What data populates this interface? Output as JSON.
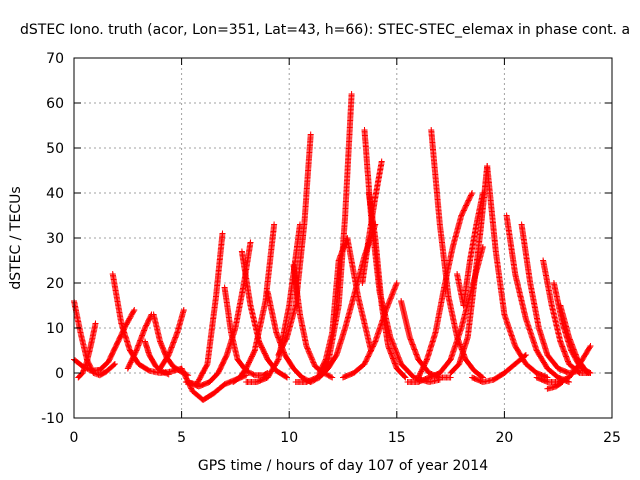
{
  "chart_data": {
    "type": "scatter",
    "title": "dSTEC Iono. truth (acor, Lon=351, Lat=43, h=66): STEC-STEC_elemax in phase cont. a",
    "xlabel": "GPS time / hours of day 107 of year 2014",
    "ylabel": "dSTEC  / TECUs",
    "xlim": [
      0,
      25
    ],
    "ylim": [
      -10,
      70
    ],
    "xticks": [
      0,
      5,
      10,
      15,
      20,
      25
    ],
    "yticks": [
      -10,
      0,
      10,
      20,
      30,
      40,
      50,
      60,
      70
    ],
    "xtick_labels": [
      "0",
      "5",
      "10",
      "15",
      "20",
      "25"
    ],
    "ytick_labels": [
      "-10",
      "0",
      "10",
      "20",
      "30",
      "40",
      "50",
      "60",
      "70"
    ],
    "grid": true,
    "marker": "plus",
    "color": "#ff0000",
    "legend": "none",
    "arcs": [
      {
        "x": [
          0.0,
          0.3,
          0.6,
          0.9,
          1.2,
          1.5,
          1.9
        ],
        "y": [
          16,
          9,
          3,
          0,
          -0.5,
          0.3,
          2
        ]
      },
      {
        "x": [
          0.0,
          0.4,
          0.8,
          1.2,
          1.6,
          2.0,
          2.4,
          2.8
        ],
        "y": [
          3,
          1.5,
          0.5,
          0.7,
          2.5,
          6.5,
          10.5,
          14
        ]
      },
      {
        "x": [
          0.2,
          0.4,
          0.6,
          0.8,
          1.0
        ],
        "y": [
          -1,
          0,
          2.5,
          6.5,
          11
        ]
      },
      {
        "x": [
          1.8,
          2.2,
          2.6,
          3.0,
          3.5,
          4.0,
          4.5,
          5.0
        ],
        "y": [
          22,
          11,
          5,
          2,
          0.5,
          0,
          0.3,
          1
        ]
      },
      {
        "x": [
          2.5,
          2.9,
          3.3,
          3.6
        ],
        "y": [
          1,
          5,
          10,
          13
        ]
      },
      {
        "x": [
          3.7,
          4.0,
          4.3,
          4.6,
          4.9,
          5.3
        ],
        "y": [
          13,
          7,
          3.5,
          1.5,
          0.5,
          -0.5
        ]
      },
      {
        "x": [
          3.3,
          3.5,
          3.8,
          4.1,
          4.4
        ],
        "y": [
          7,
          4,
          1.5,
          0.3,
          -0.3
        ]
      },
      {
        "x": [
          4.0,
          4.4,
          4.8,
          5.1
        ],
        "y": [
          1,
          4,
          9,
          14
        ]
      },
      {
        "x": [
          5.0,
          5.5,
          6.0,
          6.5,
          7.0,
          7.5,
          8.0
        ],
        "y": [
          1,
          -4,
          -6,
          -4.5,
          -2.5,
          -1.5,
          -0.5
        ]
      },
      {
        "x": [
          5.2,
          5.7,
          6.2,
          6.6,
          6.9
        ],
        "y": [
          -2,
          -2.5,
          2,
          17,
          31
        ]
      },
      {
        "x": [
          5.3,
          5.8,
          6.3,
          6.7,
          7.1,
          7.5,
          7.9,
          8.2
        ],
        "y": [
          -2,
          -3,
          -2,
          0,
          4,
          10,
          20,
          29
        ]
      },
      {
        "x": [
          7.0,
          7.3,
          7.6,
          8.0,
          8.4,
          8.8,
          9.0
        ],
        "y": [
          19,
          9,
          3,
          0.5,
          -0.5,
          -0.5,
          0
        ]
      },
      {
        "x": [
          7.4,
          7.7,
          8.0,
          8.4,
          8.9,
          9.3
        ],
        "y": [
          -2,
          -1,
          1,
          5,
          16,
          33
        ]
      },
      {
        "x": [
          8.0,
          8.5,
          9.0,
          9.5,
          10.0,
          10.5
        ],
        "y": [
          -2,
          -2,
          -1,
          3,
          15,
          33
        ]
      },
      {
        "x": [
          7.8,
          8.2,
          8.6,
          9.0,
          9.4,
          9.9
        ],
        "y": [
          27,
          15,
          7,
          3,
          0.5,
          -1
        ]
      },
      {
        "x": [
          9.0,
          9.4,
          9.8,
          10.2,
          10.6,
          11.0
        ],
        "y": [
          18,
          9,
          4,
          1,
          -1,
          -2
        ]
      },
      {
        "x": [
          9.5,
          9.9,
          10.3,
          10.7,
          11.0
        ],
        "y": [
          4,
          8,
          15,
          33,
          53
        ]
      },
      {
        "x": [
          10.2,
          10.5,
          10.8,
          11.2,
          11.6,
          12.0
        ],
        "y": [
          24,
          13,
          6,
          1.5,
          0,
          -1
        ]
      },
      {
        "x": [
          10.3,
          10.8,
          11.3,
          11.8,
          12.3,
          12.6,
          12.9
        ],
        "y": [
          -2,
          -2,
          -1,
          2,
          15,
          35,
          62
        ]
      },
      {
        "x": [
          11.0,
          11.4,
          11.8,
          12.2,
          12.6,
          13.0,
          13.5,
          14.0
        ],
        "y": [
          -2,
          -1,
          1,
          4,
          10,
          17,
          26,
          33
        ]
      },
      {
        "x": [
          11.4,
          11.7,
          12.0,
          12.3,
          12.7,
          13.2,
          13.8
        ],
        "y": [
          0,
          3,
          9,
          25,
          30,
          17,
          5
        ]
      },
      {
        "x": [
          12.5,
          13.0,
          13.5,
          14.0,
          14.5,
          15.0
        ],
        "y": [
          -1,
          0,
          2,
          7,
          14,
          20
        ]
      },
      {
        "x": [
          13.5,
          13.8,
          14.2,
          14.7,
          15.2,
          15.8,
          16.5,
          17.0
        ],
        "y": [
          54,
          35,
          18,
          8,
          2,
          -1,
          -2,
          -1.5
        ]
      },
      {
        "x": [
          13.7,
          14.0,
          14.3,
          14.6,
          15.0,
          15.4
        ],
        "y": [
          40,
          30,
          15,
          6,
          1,
          -1
        ]
      },
      {
        "x": [
          13.4,
          13.7,
          14.0,
          14.3
        ],
        "y": [
          20,
          30,
          39,
          47
        ]
      },
      {
        "x": [
          15.2,
          15.6,
          16.0,
          16.5,
          17.0,
          17.5
        ],
        "y": [
          16,
          8,
          3,
          0,
          -1,
          -1
        ]
      },
      {
        "x": [
          15.5,
          16.0,
          16.5,
          17.0,
          17.5,
          18.0,
          18.5,
          19.0
        ],
        "y": [
          -2,
          -2,
          -1,
          0,
          3,
          10,
          19,
          28
        ]
      },
      {
        "x": [
          16.0,
          16.4,
          16.8,
          17.2,
          17.6,
          18.0,
          18.5
        ],
        "y": [
          -1,
          3,
          9,
          19,
          28,
          35,
          40
        ]
      },
      {
        "x": [
          16.6,
          17.0,
          17.4,
          17.8,
          18.2,
          18.6,
          19.0
        ],
        "y": [
          54,
          33,
          17,
          8,
          3,
          0.5,
          -1
        ]
      },
      {
        "x": [
          17.5,
          17.9,
          18.3,
          18.6,
          18.9,
          19.2
        ],
        "y": [
          0,
          2,
          8,
          20,
          32,
          46
        ]
      },
      {
        "x": [
          17.8,
          18.1,
          18.4,
          18.7,
          19.0
        ],
        "y": [
          22,
          15,
          25,
          33,
          40
        ]
      },
      {
        "x": [
          19.2,
          19.6,
          20.0,
          20.5,
          21.0,
          21.5,
          22.0
        ],
        "y": [
          46,
          27,
          13,
          6,
          2,
          0,
          -1
        ]
      },
      {
        "x": [
          18.5,
          19.0,
          19.5,
          20.0,
          20.5,
          21.0
        ],
        "y": [
          -1,
          -2,
          -1.5,
          0,
          2,
          4
        ]
      },
      {
        "x": [
          20.1,
          20.5,
          21.0,
          21.5,
          22.0,
          22.5,
          23.0
        ],
        "y": [
          35,
          22,
          12,
          5,
          1,
          -1,
          -2
        ]
      },
      {
        "x": [
          20.8,
          21.2,
          21.6,
          22.0,
          22.5,
          23.0,
          23.5
        ],
        "y": [
          33,
          20,
          10,
          4,
          1,
          0,
          0.5
        ]
      },
      {
        "x": [
          21.8,
          22.2,
          22.6,
          23.0,
          23.5,
          24.0
        ],
        "y": [
          25,
          15,
          7,
          2,
          0,
          0
        ]
      },
      {
        "x": [
          22.3,
          22.7,
          23.1,
          23.5,
          23.9
        ],
        "y": [
          20,
          11,
          5,
          1.5,
          0
        ]
      },
      {
        "x": [
          22.6,
          23.0,
          23.4,
          23.8,
          24.0
        ],
        "y": [
          15,
          8,
          3,
          0.5,
          0
        ]
      },
      {
        "x": [
          21.5,
          22.0,
          22.5,
          23.0,
          23.5,
          24.0
        ],
        "y": [
          -1,
          -2,
          -2,
          -1,
          2,
          6
        ]
      },
      {
        "x": [
          22.0,
          22.4,
          22.7
        ],
        "y": [
          -3.5,
          -3,
          -2
        ]
      }
    ]
  }
}
